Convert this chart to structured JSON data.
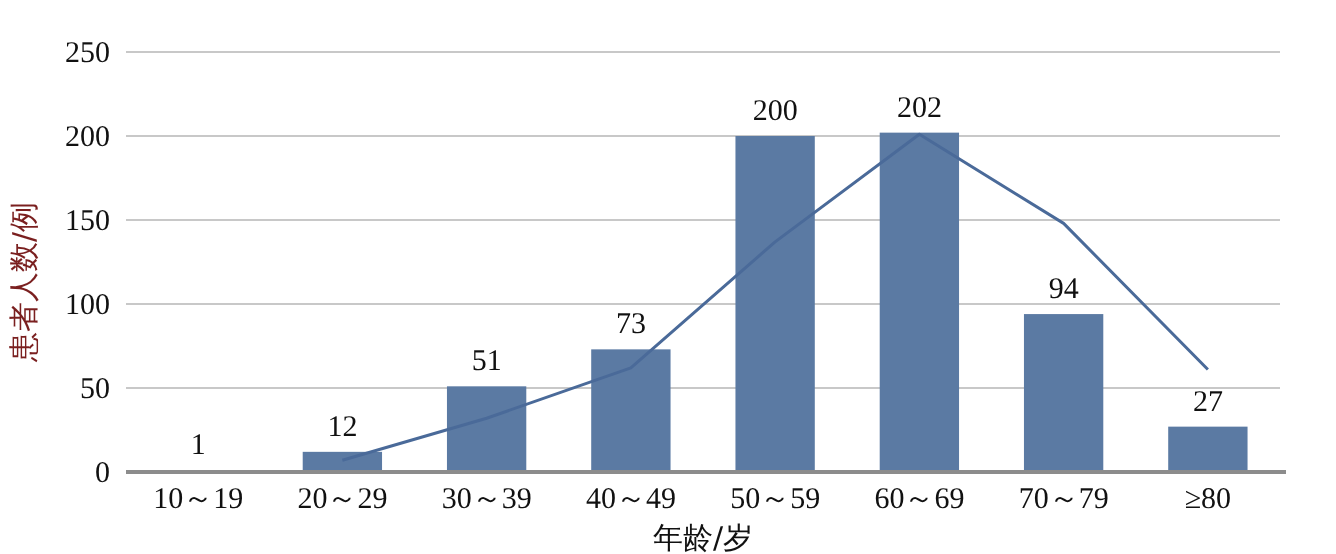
{
  "chart_data": {
    "type": "bar",
    "xlabel": "年龄/岁",
    "ylabel": "患者人数/例",
    "categories": [
      "10～19",
      "20～29",
      "30～39",
      "40～49",
      "50～59",
      "60～69",
      "70～79",
      "≥80"
    ],
    "series": [
      {
        "color": "#5b7aa3",
        "values": [
          1,
          12,
          51,
          73,
          200,
          202,
          94,
          27
        ],
        "data_labels": true
      },
      {
        "type": "line",
        "color": "#4a6a99",
        "values": [
          null,
          7,
          32,
          62,
          137,
          201,
          148,
          61
        ]
      }
    ],
    "ylim": [
      0,
      250
    ],
    "yticks": [
      0,
      50,
      100,
      150,
      200,
      250
    ],
    "grid": "y"
  }
}
